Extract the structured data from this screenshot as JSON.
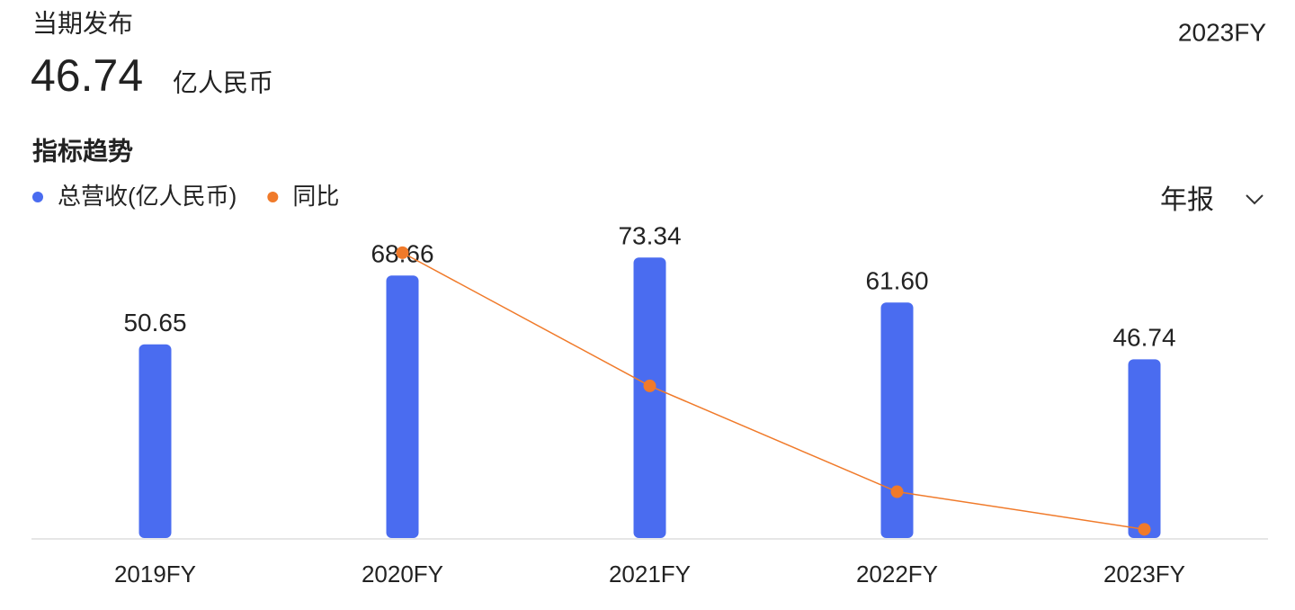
{
  "header": {
    "title": "当期发布",
    "value": "46.74",
    "unit": "亿人民币",
    "period": "2023FY",
    "section": "指标趋势",
    "selector": "年报"
  },
  "chart_data": {
    "type": "bar",
    "categories": [
      "2019FY",
      "2020FY",
      "2021FY",
      "2022FY",
      "2023FY"
    ],
    "series": [
      {
        "name": "总营收(亿人民币)",
        "color": "#4a6cf0",
        "values": [
          50.65,
          68.66,
          73.34,
          61.6,
          46.74
        ],
        "value_labels": [
          "50.65",
          "68.66",
          "73.34",
          "61.60",
          "46.74"
        ]
      },
      {
        "name": "同比",
        "color": "#f07a2a",
        "type": "line",
        "axis": "y2",
        "values": [
          null,
          35.56,
          6.82,
          -16.01,
          -24.12
        ]
      }
    ],
    "ylim": [
      0,
      80
    ],
    "y2lim": [
      -26,
      40
    ]
  }
}
